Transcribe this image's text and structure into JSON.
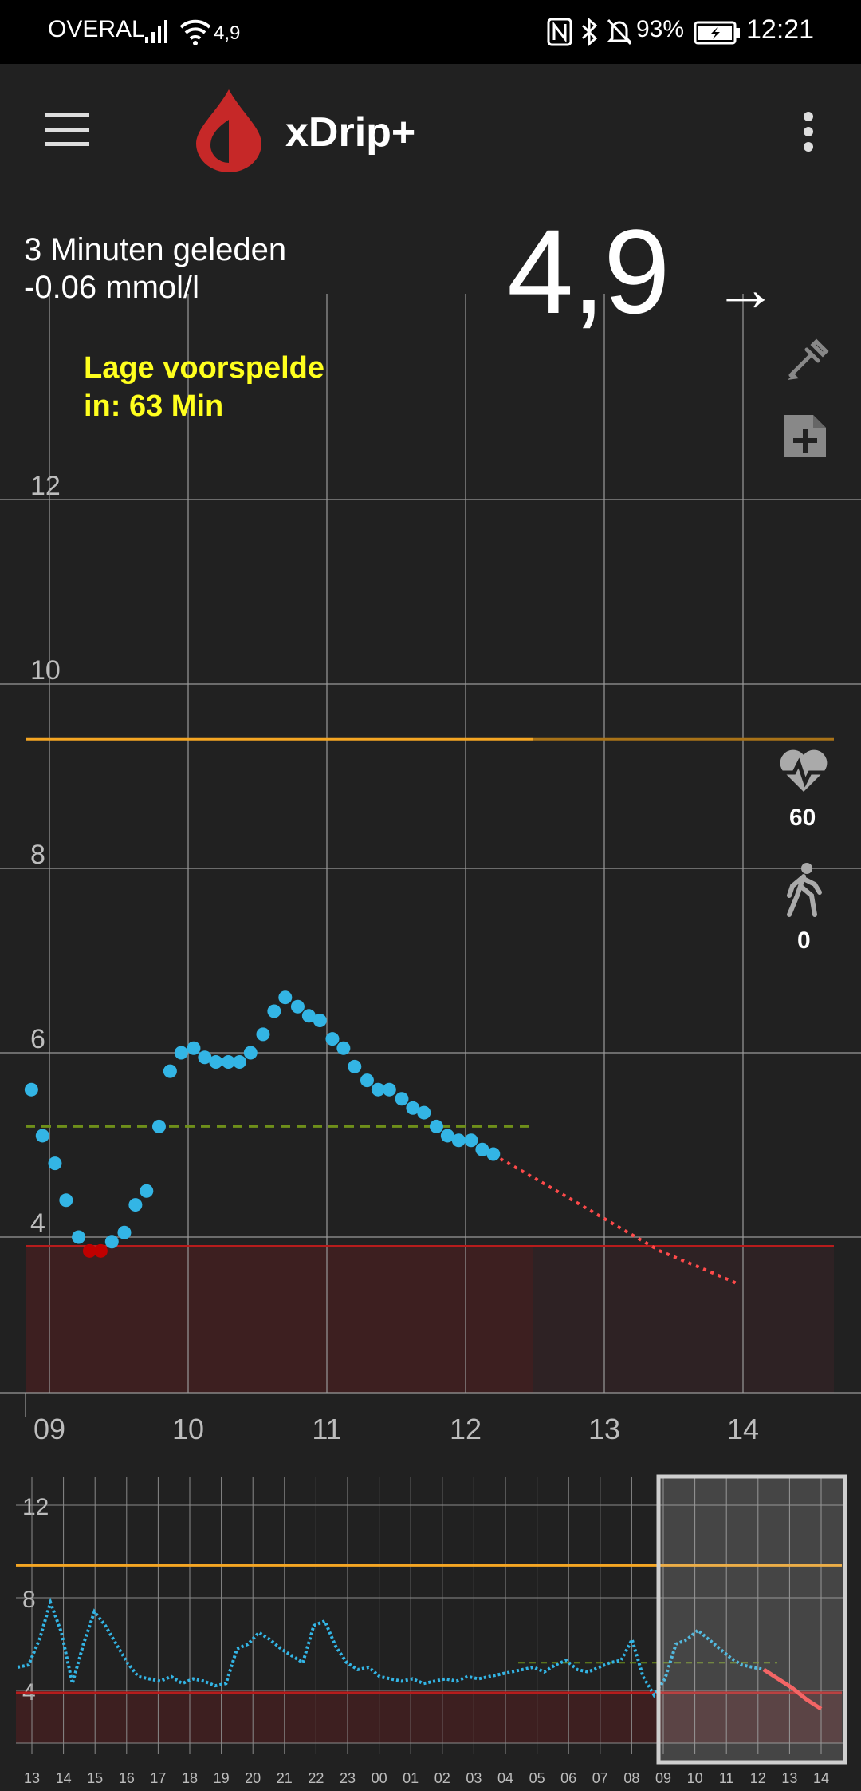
{
  "status_bar": {
    "carrier": "OVERAL",
    "wifi_value": "4,9",
    "battery": "93%",
    "time": "12:21"
  },
  "toolbar": {
    "app_title": "xDrip+",
    "menu_icon": "hamburger-menu-icon",
    "logo_icon": "blood-drop-icon",
    "overflow_icon": "more-vert-icon"
  },
  "reading": {
    "time_ago": "3 Minuten geleden",
    "delta": "-0.06 mmol/l",
    "value": "4,9",
    "trend_arrow": "→"
  },
  "prediction": {
    "line1": "Lage voorspelde",
    "line2": "in: 63 Min"
  },
  "side_panel": {
    "treatment_icon": "blood-test-icon",
    "note_icon": "add-note-icon",
    "heart_icon": "heart-rate-icon",
    "heart_rate": "60",
    "steps_icon": "walking-icon",
    "steps": "0"
  },
  "colors": {
    "readings": "#33b5e5",
    "low_readings": "#c00000",
    "high_line": "#f5a623",
    "low_band": "#3d1f20",
    "prediction": "#ff4a4a",
    "target": "#6e8f1a",
    "prediction_text": "#ffff1e"
  },
  "chart_data": [
    {
      "type": "scatter",
      "title": "",
      "x_unit": "hour of day",
      "y_unit": "mmol/l",
      "x_ticks": [
        "09",
        "10",
        "11",
        "12",
        "13",
        "14"
      ],
      "y_ticks": [
        "4",
        "6",
        "8",
        "10",
        "12"
      ],
      "xlim": [
        8.83,
        14.67
      ],
      "ylim": [
        2.2,
        13.5
      ],
      "high_line": 9.4,
      "low_line": 3.9,
      "target_line": 5.2,
      "grid": true,
      "readings": [
        [
          8.87,
          5.6
        ],
        [
          8.95,
          5.1
        ],
        [
          9.04,
          4.8
        ],
        [
          9.12,
          4.4
        ],
        [
          9.21,
          4.0
        ],
        [
          9.29,
          3.85
        ],
        [
          9.37,
          3.85
        ],
        [
          9.45,
          3.95
        ],
        [
          9.54,
          4.05
        ],
        [
          9.62,
          4.35
        ],
        [
          9.7,
          4.5
        ],
        [
          9.79,
          5.2
        ],
        [
          9.87,
          5.8
        ],
        [
          9.95,
          6.0
        ],
        [
          10.04,
          6.05
        ],
        [
          10.12,
          5.95
        ],
        [
          10.2,
          5.9
        ],
        [
          10.29,
          5.9
        ],
        [
          10.37,
          5.9
        ],
        [
          10.45,
          6.0
        ],
        [
          10.54,
          6.2
        ],
        [
          10.62,
          6.45
        ],
        [
          10.7,
          6.6
        ],
        [
          10.79,
          6.5
        ],
        [
          10.87,
          6.4
        ],
        [
          10.95,
          6.35
        ],
        [
          11.04,
          6.15
        ],
        [
          11.12,
          6.05
        ],
        [
          11.2,
          5.85
        ],
        [
          11.29,
          5.7
        ],
        [
          11.37,
          5.6
        ],
        [
          11.45,
          5.6
        ],
        [
          11.54,
          5.5
        ],
        [
          11.62,
          5.4
        ],
        [
          11.7,
          5.35
        ],
        [
          11.79,
          5.2
        ],
        [
          11.87,
          5.1
        ],
        [
          11.95,
          5.05
        ],
        [
          12.04,
          5.05
        ],
        [
          12.12,
          4.95
        ],
        [
          12.2,
          4.9
        ]
      ],
      "low_readings": [
        [
          9.29,
          3.85
        ],
        [
          9.37,
          3.85
        ]
      ],
      "prediction": [
        [
          12.25,
          4.85
        ],
        [
          12.6,
          4.55
        ],
        [
          13.0,
          4.2
        ],
        [
          13.4,
          3.85
        ],
        [
          13.8,
          3.6
        ],
        [
          13.95,
          3.5
        ]
      ]
    },
    {
      "type": "line",
      "title": "",
      "x_ticks": [
        "13",
        "14",
        "15",
        "16",
        "17",
        "18",
        "19",
        "20",
        "21",
        "22",
        "23",
        "00",
        "01",
        "02",
        "03",
        "04",
        "05",
        "06",
        "07",
        "08",
        "09",
        "10",
        "11",
        "12",
        "13",
        "14"
      ],
      "y_ticks": [
        "4",
        "8",
        "12"
      ],
      "ylim": [
        2.2,
        13.5
      ],
      "high_line": 9.4,
      "low_line": 3.9,
      "target_line": 5.2,
      "series": [
        {
          "values": [
            5.0,
            5.1,
            6.2,
            7.8,
            6.5,
            4.3,
            6.0,
            7.4,
            6.8,
            6.0,
            5.2,
            4.6,
            4.5,
            4.4,
            4.6,
            4.3,
            4.5,
            4.4,
            4.2,
            4.3,
            5.8,
            6.0,
            6.5,
            6.2,
            5.8,
            5.5,
            5.2,
            6.8,
            7.0,
            5.9,
            5.2,
            4.9,
            5.0,
            4.6,
            4.5,
            4.4,
            4.5,
            4.3,
            4.4,
            4.5,
            4.4,
            4.6,
            4.5,
            4.6,
            4.7,
            4.8,
            4.9,
            5.0,
            4.8,
            5.1,
            5.3,
            4.9,
            4.8,
            5.0,
            5.2,
            5.3,
            6.2,
            4.6,
            3.8,
            4.5,
            6.0,
            6.2,
            6.6,
            6.2,
            5.8,
            5.4,
            5.1,
            5.0,
            4.9
          ]
        }
      ],
      "prediction": [
        4.9,
        4.5,
        4.1,
        3.6,
        3.2
      ]
    }
  ]
}
